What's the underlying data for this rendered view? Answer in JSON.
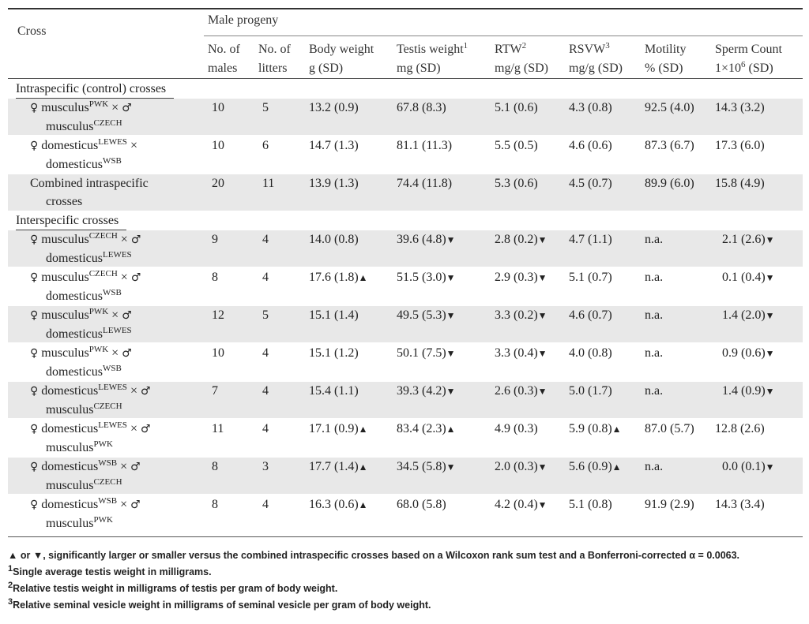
{
  "header": {
    "cross": "Cross",
    "male_progeny": "Male progeny",
    "columns": [
      {
        "l1": "No. of",
        "l2": "males",
        "sup": ""
      },
      {
        "l1": "No. of",
        "l2": "litters",
        "sup": ""
      },
      {
        "l1": "Body weight",
        "l2": "g (SD)",
        "sup": ""
      },
      {
        "l1": "Testis weight",
        "l2": "mg (SD)",
        "sup": "1"
      },
      {
        "l1": "RTW",
        "l2": "mg/g (SD)",
        "sup": "2"
      },
      {
        "l1": "RSVW",
        "l2": "mg/g (SD)",
        "sup": "3"
      },
      {
        "l1": "Motility",
        "l2": "% (SD)",
        "sup": ""
      },
      {
        "l1": "Sperm Count",
        "l2": "1×10",
        "l2sup": "6",
        "l2tail": " (SD)",
        "sup": ""
      }
    ]
  },
  "sections": [
    {
      "title": "Intraspecific (control) crosses",
      "rows": [
        {
          "f": "musculus",
          "fs": "PWK",
          "m": "musculus",
          "ms": "CZECH",
          "male_sign": true,
          "vals": [
            "10",
            "5",
            "13.2 (0.9)",
            "67.8 (8.3)",
            "5.1 (0.6)",
            "4.3 (0.8)",
            "92.5 (4.0)",
            "14.3 (3.2)"
          ],
          "shade": true
        },
        {
          "f": "domesticus",
          "fs": "LEWES",
          "m": "domesticus",
          "ms": "WSB",
          "male_sign": false,
          "vals": [
            "10",
            "6",
            "14.7 (1.3)",
            "81.1 (11.3)",
            "5.5 (0.5)",
            "4.6 (0.6)",
            "87.3 (6.7)",
            "17.3 (6.0)"
          ],
          "shade": false
        },
        {
          "combined": true,
          "l1": "Combined intraspecific",
          "l2": "crosses",
          "vals": [
            "20",
            "11",
            "13.9 (1.3)",
            "74.4 (11.8)",
            "5.3 (0.6)",
            "4.5 (0.7)",
            "89.9 (6.0)",
            "15.8 (4.9)"
          ],
          "shade": true
        }
      ]
    },
    {
      "title": "Interspecific crosses",
      "rows": [
        {
          "f": "musculus",
          "fs": "CZECH",
          "m": "domesticus",
          "ms": "LEWES",
          "male_sign": true,
          "vals": [
            "9",
            "4",
            "14.0 (0.8)",
            "39.6 (4.8)▼",
            "2.8 (0.2)▼",
            "4.7 (1.1)",
            "n.a.",
            "2.1 (2.6)▼"
          ],
          "shade": true
        },
        {
          "f": "musculus",
          "fs": "CZECH",
          "m": "domesticus",
          "ms": "WSB",
          "male_sign": true,
          "vals": [
            "8",
            "4",
            "17.6 (1.8)▲",
            "51.5 (3.0)▼",
            "2.9 (0.3)▼",
            "5.1 (0.7)",
            "n.a.",
            "0.1 (0.4)▼"
          ],
          "shade": false
        },
        {
          "f": "musculus",
          "fs": "PWK",
          "m": "domesticus",
          "ms": "LEWES",
          "male_sign": true,
          "vals": [
            "12",
            "5",
            "15.1 (1.4)",
            "49.5 (5.3)▼",
            "3.3 (0.2)▼",
            "4.6 (0.7)",
            "n.a.",
            "1.4 (2.0)▼"
          ],
          "shade": true
        },
        {
          "f": "musculus",
          "fs": "PWK",
          "m": "domesticus",
          "ms": "WSB",
          "male_sign": true,
          "vals": [
            "10",
            "4",
            "15.1 (1.2)",
            "50.1 (7.5)▼",
            "3.3 (0.4)▼",
            "4.0 (0.8)",
            "n.a.",
            "0.9 (0.6)▼"
          ],
          "shade": false
        },
        {
          "f": "domesticus",
          "fs": "LEWES",
          "m": "musculus",
          "ms": "CZECH",
          "male_sign": true,
          "vals": [
            "7",
            "4",
            "15.4 (1.1)",
            "39.3 (4.2)▼",
            "2.6 (0.3)▼",
            "5.0 (1.7)",
            "n.a.",
            "1.4 (0.9)▼"
          ],
          "shade": true
        },
        {
          "f": "domesticus",
          "fs": "LEWES",
          "m": "musculus",
          "ms": "PWK",
          "male_sign": true,
          "vals": [
            "11",
            "4",
            "17.1 (0.9)▲",
            "83.4 (2.3)▲",
            "4.9 (0.3)",
            "5.9 (0.8)▲",
            "87.0 (5.7)",
            "12.8 (2.6)"
          ],
          "shade": false
        },
        {
          "f": "domesticus",
          "fs": "WSB",
          "m": "musculus",
          "ms": "CZECH",
          "male_sign": true,
          "vals": [
            "8",
            "3",
            "17.7 (1.4)▲",
            "34.5 (5.8)▼",
            "2.0 (0.3)▼",
            "5.6 (0.9)▲",
            "n.a.",
            "0.0 (0.1)▼"
          ],
          "shade": true
        },
        {
          "f": "domesticus",
          "fs": "WSB",
          "m": "musculus",
          "ms": "PWK",
          "male_sign": true,
          "vals": [
            "8",
            "4",
            "16.3 (0.6)▲",
            "68.0 (5.8)",
            "4.2 (0.4)▼",
            "5.1 (0.8)",
            "91.9 (2.9)",
            "14.3 (3.4)"
          ],
          "shade": false
        }
      ]
    }
  ],
  "footnotes": [
    {
      "mark": "",
      "text": "▲ or ▼, significantly larger or smaller versus the combined intraspecific crosses based on a Wilcoxon rank sum test and a Bonferroni-corrected α = 0.0063."
    },
    {
      "mark": "1",
      "text": "Single average testis weight in milligrams."
    },
    {
      "mark": "2",
      "text": "Relative testis weight in milligrams of testis per gram of body weight."
    },
    {
      "mark": "3",
      "text": "Relative seminal vesicle weight in milligrams of seminal vesicle per gram of body weight."
    }
  ],
  "symbols": {
    "female": "♀",
    "male": "♂",
    "times": "×"
  }
}
